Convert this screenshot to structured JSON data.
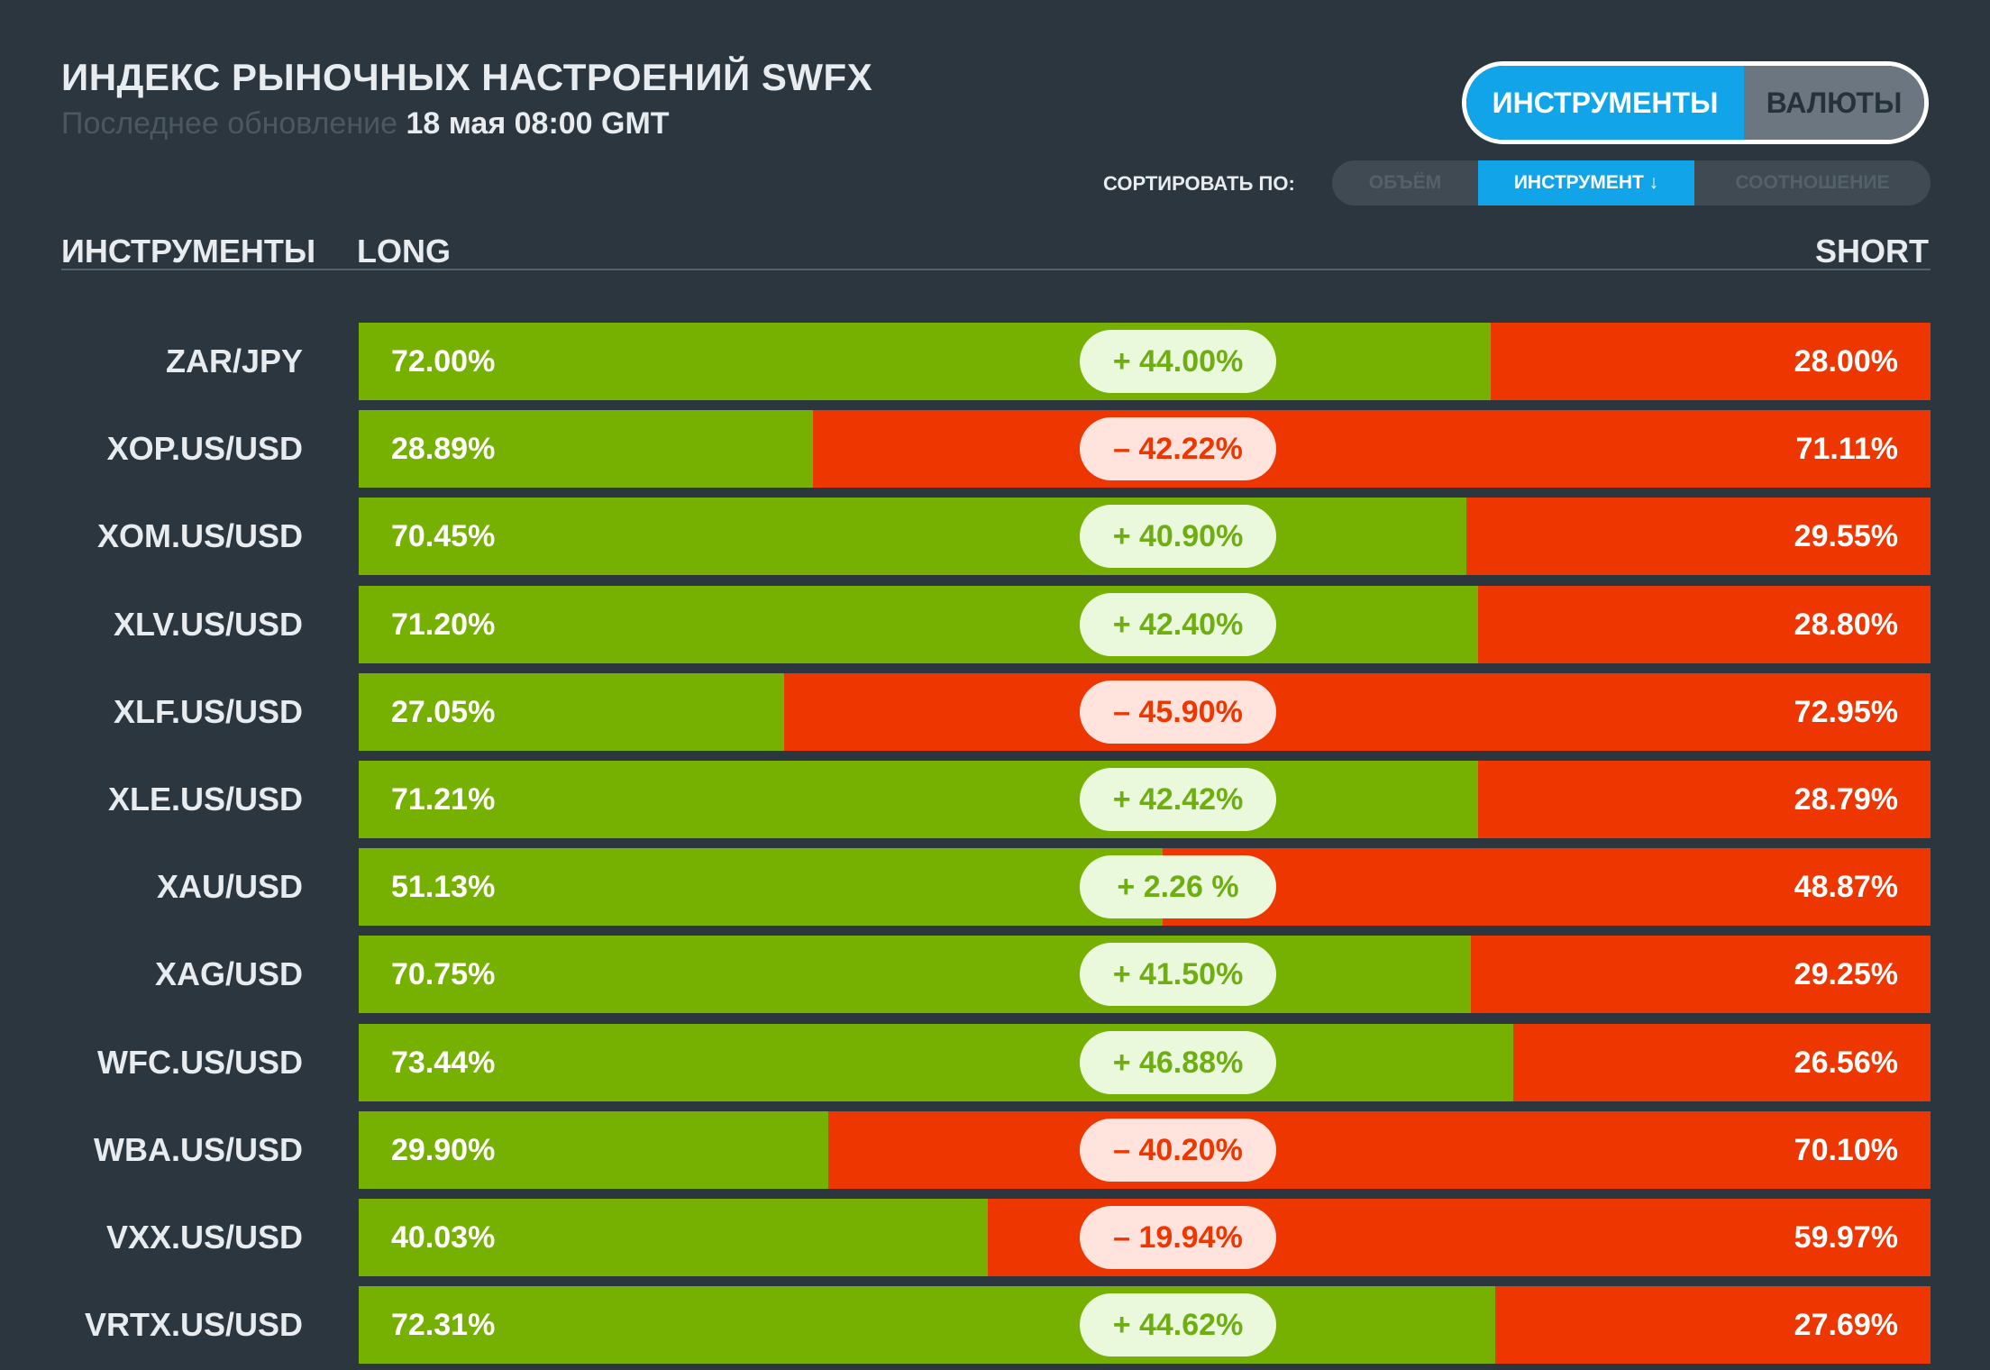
{
  "header": {
    "title": "ИНДЕКС РЫНОЧНЫХ НАСТРОЕНИЙ SWFX",
    "updated_label": "Последнее обновление",
    "updated_value": "18 мая 08:00 GMT"
  },
  "mode_toggle": {
    "instruments_label": "ИНСТРУМЕНТЫ",
    "currencies_label": "ВАЛЮТЫ",
    "active": "instruments"
  },
  "sort": {
    "label": "СОРТИРОВАТЬ ПО:",
    "options": [
      "ОБЪЁМ",
      "ИНСТРУМЕНТ ↓",
      "СООТНОШЕНИЕ"
    ],
    "active_index": 1
  },
  "columns": {
    "instruments": "ИНСТРУМЕНТЫ",
    "long": "LONG",
    "short": "SHORT"
  },
  "colors": {
    "long": "#76b102",
    "short": "#ee3700",
    "accent": "#12a4e8",
    "background": "#2b363e"
  },
  "rows": [
    {
      "name": "ZAR/JPY",
      "long": "72.00%",
      "diff": "+ 44.00%",
      "short": "28.00%",
      "long_pct": 72.0
    },
    {
      "name": "XOP.US/USD",
      "long": "28.89%",
      "diff": "– 42.22%",
      "short": "71.11%",
      "long_pct": 28.89
    },
    {
      "name": "XOM.US/USD",
      "long": "70.45%",
      "diff": "+ 40.90%",
      "short": "29.55%",
      "long_pct": 70.45
    },
    {
      "name": "XLV.US/USD",
      "long": "71.20%",
      "diff": "+ 42.40%",
      "short": "28.80%",
      "long_pct": 71.2
    },
    {
      "name": "XLF.US/USD",
      "long": "27.05%",
      "diff": "– 45.90%",
      "short": "72.95%",
      "long_pct": 27.05
    },
    {
      "name": "XLE.US/USD",
      "long": "71.21%",
      "diff": "+ 42.42%",
      "short": "28.79%",
      "long_pct": 71.21
    },
    {
      "name": "XAU/USD",
      "long": "51.13%",
      "diff": "+ 2.26 %",
      "short": "48.87%",
      "long_pct": 51.13
    },
    {
      "name": "XAG/USD",
      "long": "70.75%",
      "diff": "+ 41.50%",
      "short": "29.25%",
      "long_pct": 70.75
    },
    {
      "name": "WFC.US/USD",
      "long": "73.44%",
      "diff": "+ 46.88%",
      "short": "26.56%",
      "long_pct": 73.44
    },
    {
      "name": "WBA.US/USD",
      "long": "29.90%",
      "diff": "– 40.20%",
      "short": "70.10%",
      "long_pct": 29.9
    },
    {
      "name": "VXX.US/USD",
      "long": "40.03%",
      "diff": "– 19.94%",
      "short": "59.97%",
      "long_pct": 40.03
    },
    {
      "name": "VRTX.US/USD",
      "long": "72.31%",
      "diff": "+ 44.62%",
      "short": "27.69%",
      "long_pct": 72.31
    }
  ]
}
